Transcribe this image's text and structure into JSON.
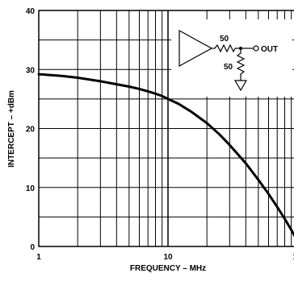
{
  "chart_data": {
    "type": "line",
    "xlabel": "FREQUENCY – MHz",
    "ylabel": "INTERCEPT – +dBm",
    "x_scale": "log",
    "xlim": [
      1,
      100
    ],
    "ylim": [
      0,
      40
    ],
    "x_tick_labels": [
      "1",
      "10",
      "10"
    ],
    "y_tick_labels": [
      "0",
      "10",
      "20",
      "30",
      "40"
    ],
    "grid": true,
    "series": [
      {
        "x": [
          1,
          1.5,
          2,
          3,
          4,
          5,
          6,
          7,
          8,
          9,
          10,
          12,
          15,
          20,
          25,
          30,
          40,
          50,
          60,
          70,
          80,
          90,
          100
        ],
        "values": [
          29.2,
          28.9,
          28.6,
          28.0,
          27.5,
          27.1,
          26.7,
          26.3,
          25.9,
          25.5,
          25.0,
          24.2,
          22.9,
          20.9,
          19.0,
          17.2,
          14.1,
          11.3,
          8.9,
          6.7,
          4.7,
          2.8,
          1.0
        ]
      }
    ],
    "inset": {
      "resistor_top": "50",
      "resistor_shunt": "50",
      "output_label": "OUT"
    }
  }
}
